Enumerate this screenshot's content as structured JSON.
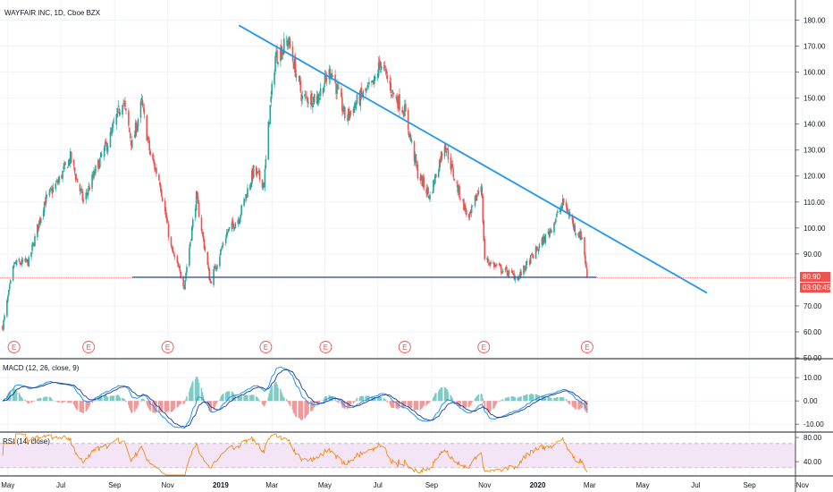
{
  "header": {
    "title": "WAYFAIR INC, 1D, Cboe BZX",
    "macd_label": "MACD (12, 26, close, 9)",
    "rsi_label": "RSI (14, close)"
  },
  "price_badges": {
    "last_price": "80.90",
    "countdown": "03:00:45"
  },
  "colors": {
    "up": "#26a69a",
    "down": "#ef5350",
    "trendline": "#2196f3",
    "support": "#2a5db0",
    "macd_line": "#2196f3",
    "signal_line": "#1e3a8a",
    "rsi_line": "#f57c00",
    "rsi_band": "#f3e5f5",
    "earnings": "#ef5350"
  },
  "chart_data": {
    "type": "candlestick",
    "symbol": "WAYFAIR INC",
    "interval": "1D",
    "exchange": "Cboe BZX",
    "x_labels": [
      "May",
      "Jul",
      "Sep",
      "Nov",
      "2019",
      "Mar",
      "May",
      "Jul",
      "Sep",
      "Nov",
      "2020",
      "Mar",
      "May",
      "Jul",
      "Sep",
      "Nov"
    ],
    "x_label_dates": [
      "2018-05",
      "2018-07",
      "2018-09",
      "2018-11",
      "2019-01",
      "2019-03",
      "2019-05",
      "2019-07",
      "2019-09",
      "2019-11",
      "2020-01",
      "2020-03",
      "2020-05",
      "2020-07",
      "2020-09",
      "2020-11"
    ],
    "price_axis": {
      "ticks": [
        "180.00",
        "170.00",
        "160.00",
        "150.00",
        "140.00",
        "130.00",
        "120.00",
        "110.00",
        "100.00",
        "90.00",
        "70.00",
        "60.00",
        "50.00"
      ],
      "range": [
        50,
        185
      ]
    },
    "last_price": 80.9,
    "anchors": [
      [
        "2018-04-25",
        62
      ],
      [
        "2018-05-08",
        86
      ],
      [
        "2018-05-25",
        87
      ],
      [
        "2018-06-12",
        110
      ],
      [
        "2018-06-28",
        118
      ],
      [
        "2018-07-12",
        127
      ],
      [
        "2018-07-27",
        110
      ],
      [
        "2018-08-10",
        122
      ],
      [
        "2018-08-28",
        136
      ],
      [
        "2018-09-10",
        150
      ],
      [
        "2018-09-21",
        132
      ],
      [
        "2018-10-02",
        148
      ],
      [
        "2018-10-12",
        128
      ],
      [
        "2018-10-23",
        118
      ],
      [
        "2018-11-05",
        92
      ],
      [
        "2018-11-20",
        78
      ],
      [
        "2018-12-04",
        112
      ],
      [
        "2018-12-20",
        79
      ],
      [
        "2019-01-08",
        98
      ],
      [
        "2019-01-22",
        104
      ],
      [
        "2019-02-08",
        122
      ],
      [
        "2019-02-20",
        117
      ],
      [
        "2019-02-26",
        143
      ],
      [
        "2019-03-05",
        166
      ],
      [
        "2019-03-20",
        172
      ],
      [
        "2019-04-05",
        150
      ],
      [
        "2019-04-22",
        150
      ],
      [
        "2019-05-08",
        161
      ],
      [
        "2019-05-25",
        142
      ],
      [
        "2019-06-10",
        150
      ],
      [
        "2019-06-26",
        155
      ],
      [
        "2019-07-04",
        164
      ],
      [
        "2019-07-18",
        152
      ],
      [
        "2019-08-01",
        145
      ],
      [
        "2019-08-16",
        121
      ],
      [
        "2019-08-30",
        112
      ],
      [
        "2019-09-16",
        133
      ],
      [
        "2019-09-28",
        118
      ],
      [
        "2019-10-14",
        103
      ],
      [
        "2019-10-28",
        118
      ],
      [
        "2019-11-01",
        88
      ],
      [
        "2019-11-20",
        84
      ],
      [
        "2019-12-10",
        81
      ],
      [
        "2019-12-28",
        90
      ],
      [
        "2020-01-15",
        99
      ],
      [
        "2020-01-31",
        110
      ],
      [
        "2020-02-14",
        99
      ],
      [
        "2020-02-22",
        96
      ],
      [
        "2020-02-27",
        80.9
      ]
    ],
    "trendline": {
      "from": [
        "2019-01-22",
        178
      ],
      "to": [
        "2020-07-14",
        75
      ]
    },
    "support_line": {
      "from": [
        "2018-09-21",
        81
      ],
      "to": [
        "2020-03-09",
        81
      ]
    },
    "earnings_markers": [
      "2018-05-08",
      "2018-08-02",
      "2018-11-01",
      "2019-02-22",
      "2019-05-02",
      "2019-08-01",
      "2019-10-31",
      "2020-02-27"
    ],
    "earnings_label": "E",
    "macd": {
      "label": "MACD (12, 26, close, 9)",
      "ticks": [
        "10.00",
        "0.00",
        "-10.00"
      ],
      "range": [
        -13,
        17
      ]
    },
    "rsi": {
      "label": "RSI (14, close)",
      "ticks": [
        "80.00",
        "40.00"
      ],
      "range": [
        18,
        86
      ],
      "band": [
        30,
        70
      ]
    }
  }
}
